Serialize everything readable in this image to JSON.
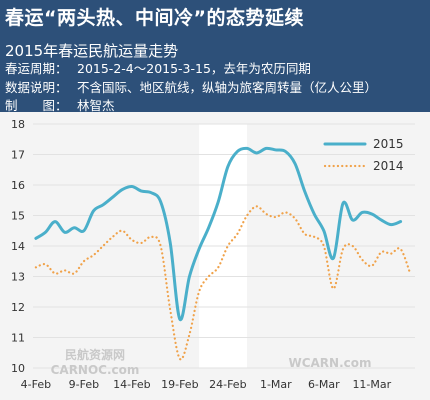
{
  "header": {
    "title": "春运“两头热、中间冷”的态势延续",
    "subtitle": "2015年春运民航运量走势",
    "period_label": "春运周期：",
    "period_value": "2015-2-4～2015-3-15，去年为农历同期",
    "note_label": "数据说明：",
    "note_value": "不含国际、地区航线，纵轴为旅客周转量（亿人公里）",
    "author_label": "制　　图：",
    "author_value": "林智杰"
  },
  "watermarks": [
    "民航资源网",
    "CARNOC.com",
    "WCARN.com"
  ],
  "colors": {
    "header_bg": "#2d5079",
    "series_2015": "#4aafca",
    "series_2014": "#f0a24a",
    "band": "#ffffff"
  },
  "chart_data": {
    "type": "line",
    "title": "2015年春运民航运量走势",
    "xlabel": "",
    "ylabel": "",
    "xtick_labels": [
      "4-Feb",
      "9-Feb",
      "14-Feb",
      "19-Feb",
      "24-Feb",
      "1-Mar",
      "6-Mar",
      "11-Mar"
    ],
    "ylim": [
      10,
      18
    ],
    "yticks": [
      10,
      11,
      12,
      13,
      14,
      15,
      16,
      17,
      18
    ],
    "grid": true,
    "legend_position": "top-right",
    "highlight_band_days": [
      17,
      22
    ],
    "x_days": [
      0,
      1,
      2,
      3,
      4,
      5,
      6,
      7,
      8,
      9,
      10,
      11,
      12,
      13,
      14,
      15,
      16,
      17,
      18,
      19,
      20,
      21,
      22,
      23,
      24,
      25,
      26,
      27,
      28,
      29,
      30,
      31,
      32,
      33,
      34,
      35,
      36,
      37,
      38,
      39
    ],
    "series": [
      {
        "name": "2015",
        "style": "solid",
        "values": [
          14.25,
          14.45,
          14.8,
          14.45,
          14.6,
          14.5,
          15.15,
          15.35,
          15.6,
          15.85,
          15.95,
          15.8,
          15.75,
          15.45,
          14.1,
          11.6,
          13.0,
          13.9,
          14.6,
          15.45,
          16.6,
          17.1,
          17.2,
          17.05,
          17.2,
          17.15,
          17.1,
          16.7,
          15.8,
          15.05,
          14.5,
          13.6,
          15.4,
          14.85,
          15.1,
          15.05,
          14.85,
          14.7,
          14.8,
          null
        ]
      },
      {
        "name": "2014",
        "style": "dotted",
        "values": [
          13.3,
          13.4,
          13.1,
          13.2,
          13.1,
          13.5,
          13.7,
          14.0,
          14.3,
          14.5,
          14.2,
          14.1,
          14.3,
          14.0,
          11.9,
          10.3,
          11.1,
          12.5,
          13.0,
          13.3,
          14.0,
          14.4,
          15.0,
          15.3,
          15.05,
          14.95,
          15.1,
          14.9,
          14.4,
          14.3,
          14.0,
          12.6,
          13.9,
          14.0,
          13.55,
          13.35,
          13.8,
          13.75,
          13.9,
          13.1
        ]
      }
    ]
  }
}
